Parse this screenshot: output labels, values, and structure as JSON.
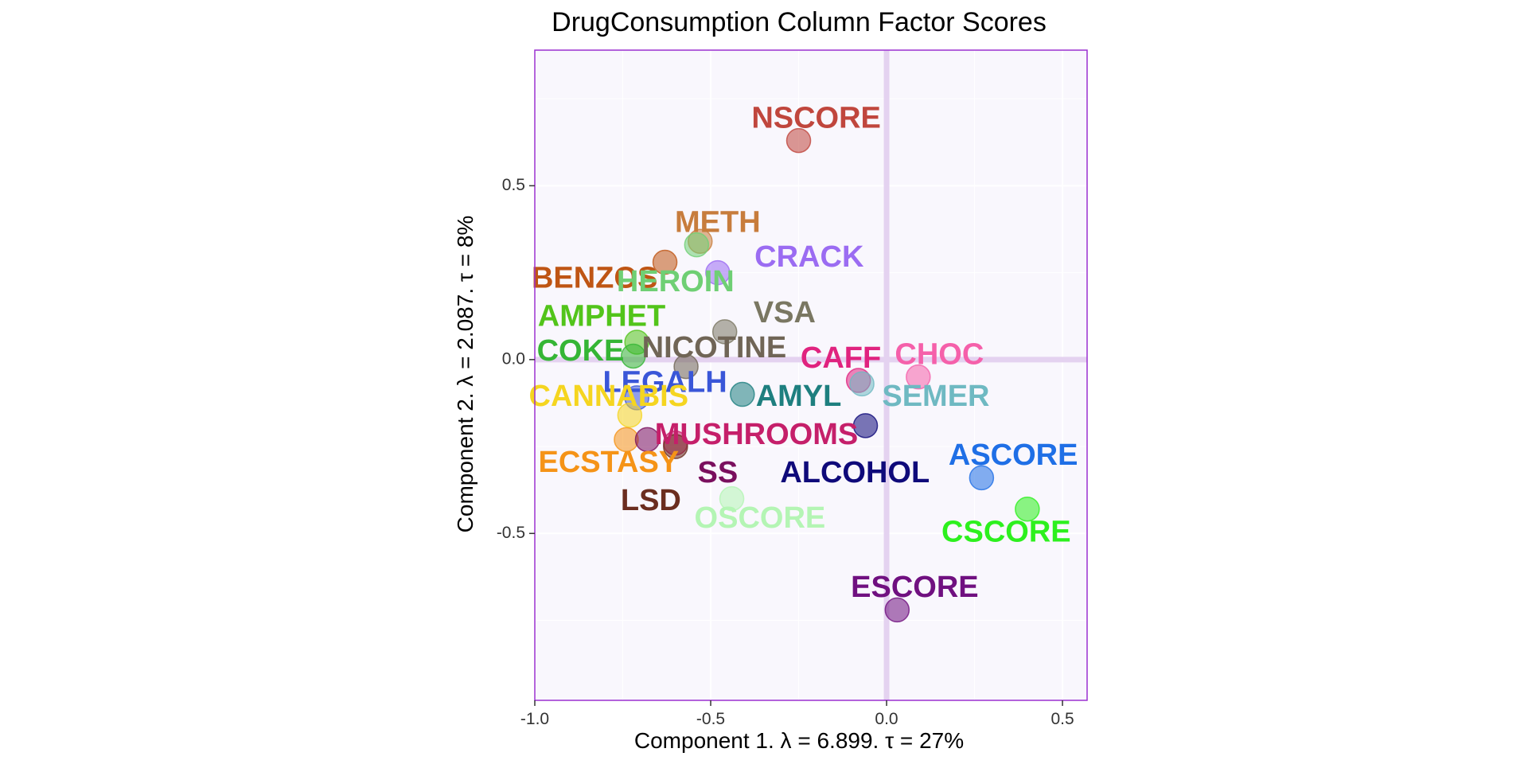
{
  "chart_data": {
    "type": "scatter",
    "title": "DrugConsumption Column Factor Scores",
    "xlabel": "Component 1.   λ = 6.899.  τ = 27%",
    "ylabel": "Component 2.   λ = 2.087.  τ = 8%",
    "xlim": [
      -1.0,
      0.57
    ],
    "ylim": [
      -0.98,
      0.89
    ],
    "xticks": [
      -1.0,
      -0.5,
      0.0,
      0.5
    ],
    "xtick_labels": [
      "-1.0",
      "-0.5",
      "0.0",
      "0.5"
    ],
    "yticks": [
      0.5,
      0.0,
      -0.5
    ],
    "ytick_labels": [
      "0.5",
      "0.0",
      "-0.5"
    ],
    "grid": true,
    "background_color": "#f9f7fd",
    "border_color": "#9b30d0",
    "origin_line_color": "#e4d2f0",
    "points": [
      {
        "label": "NSCORE",
        "x": -0.25,
        "y": 0.63,
        "lx": -0.2,
        "ly": 0.69,
        "color": "#c0463d"
      },
      {
        "label": "METH",
        "x": -0.53,
        "y": 0.34,
        "lx": -0.48,
        "ly": 0.39,
        "color": "#c77c3c"
      },
      {
        "label": "CRACK",
        "x": -0.48,
        "y": 0.25,
        "lx": -0.22,
        "ly": 0.29,
        "color": "#9b6cf2"
      },
      {
        "label": "BENZOS",
        "x": -0.63,
        "y": 0.28,
        "lx": -0.83,
        "ly": 0.23,
        "color": "#bf5514"
      },
      {
        "label": "HEROIN",
        "x": -0.54,
        "y": 0.33,
        "lx": -0.6,
        "ly": 0.22,
        "color": "#6fcf74"
      },
      {
        "label": "VSA",
        "x": -0.46,
        "y": 0.08,
        "lx": -0.29,
        "ly": 0.13,
        "color": "#7a7762"
      },
      {
        "label": "AMPHET",
        "x": -0.71,
        "y": 0.05,
        "lx": -0.81,
        "ly": 0.12,
        "color": "#52c41a"
      },
      {
        "label": "COKE",
        "x": -0.72,
        "y": 0.01,
        "lx": -0.87,
        "ly": 0.02,
        "color": "#35b535"
      },
      {
        "label": "NICOTINE",
        "x": -0.57,
        "y": -0.02,
        "lx": -0.49,
        "ly": 0.03,
        "color": "#706556"
      },
      {
        "label": "CAFF",
        "x": -0.08,
        "y": -0.06,
        "lx": -0.13,
        "ly": 0.0,
        "color": "#e0237f"
      },
      {
        "label": "CHOC",
        "x": 0.09,
        "y": -0.05,
        "lx": 0.15,
        "ly": 0.01,
        "color": "#f560aa"
      },
      {
        "label": "LEGALH",
        "x": -0.71,
        "y": -0.11,
        "lx": -0.63,
        "ly": -0.07,
        "color": "#3a56d8"
      },
      {
        "label": "AMYL",
        "x": -0.41,
        "y": -0.1,
        "lx": -0.25,
        "ly": -0.11,
        "color": "#1e7f7f"
      },
      {
        "label": "SEMER",
        "x": -0.07,
        "y": -0.07,
        "lx": 0.14,
        "ly": -0.11,
        "color": "#6fb9c2"
      },
      {
        "label": "CANNABIS",
        "x": -0.73,
        "y": -0.16,
        "lx": -0.79,
        "ly": -0.11,
        "color": "#f5d520"
      },
      {
        "label": "MUSHROOMS",
        "x": -0.6,
        "y": -0.24,
        "lx": -0.37,
        "ly": -0.22,
        "color": "#c51f6a"
      },
      {
        "label": "ECSTASY",
        "x": -0.74,
        "y": -0.23,
        "lx": -0.79,
        "ly": -0.3,
        "color": "#f59317"
      },
      {
        "label": "SS",
        "x": -0.68,
        "y": -0.23,
        "lx": -0.48,
        "ly": -0.33,
        "color": "#7a0f5e"
      },
      {
        "label": "ALCOHOL",
        "x": -0.06,
        "y": -0.19,
        "lx": -0.09,
        "ly": -0.33,
        "color": "#0f0a7a"
      },
      {
        "label": "ASCORE",
        "x": 0.27,
        "y": -0.34,
        "lx": 0.36,
        "ly": -0.28,
        "color": "#1f6fe6"
      },
      {
        "label": "LSD",
        "x": -0.6,
        "y": -0.25,
        "lx": -0.67,
        "ly": -0.41,
        "color": "#6b2d1f"
      },
      {
        "label": "OSCORE",
        "x": -0.44,
        "y": -0.4,
        "lx": -0.36,
        "ly": -0.46,
        "color": "#b4f5b4"
      },
      {
        "label": "CSCORE",
        "x": 0.4,
        "y": -0.43,
        "lx": 0.34,
        "ly": -0.5,
        "color": "#2df01e"
      },
      {
        "label": "ESCORE",
        "x": 0.03,
        "y": -0.72,
        "lx": 0.08,
        "ly": -0.66,
        "color": "#701080"
      }
    ]
  }
}
